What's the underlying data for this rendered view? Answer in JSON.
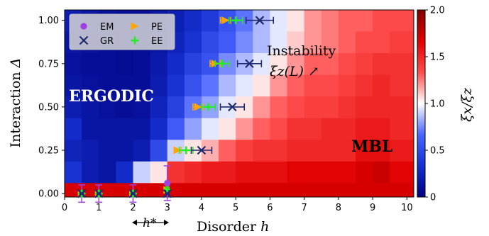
{
  "chart_data": {
    "type": "heatmap",
    "title": "",
    "xlabel": "Disorder",
    "xlabel_symbol": "h",
    "ylabel": "Interaction",
    "ylabel_symbol": "Δ",
    "xlim": [
      0,
      10.2
    ],
    "ylim": [
      -0.02,
      1.06
    ],
    "xticks": [
      "0",
      "1",
      "2",
      "3",
      "4",
      "5",
      "6",
      "7",
      "8",
      "9",
      "10"
    ],
    "yticks": [
      "0.00",
      "0.25",
      "0.50",
      "0.75",
      "1.00"
    ],
    "colorbar": {
      "label": "ξx/ξz",
      "range": [
        0,
        2.0
      ],
      "ticks": [
        "0",
        "0.5",
        "1.0",
        "1.5",
        "2.0"
      ],
      "colors": [
        "#00007f",
        "#1530d0",
        "#4a64ff",
        "#ffffff",
        "#ff4d4d",
        "#e00000",
        "#7f0000"
      ]
    },
    "heatmap": {
      "h_centers": [
        0.25,
        0.75,
        1.25,
        1.75,
        2.25,
        2.75,
        3.25,
        3.75,
        4.25,
        4.75,
        5.25,
        5.75,
        6.25,
        6.75,
        7.25,
        7.75,
        8.25,
        8.75,
        9.25,
        9.75
      ],
      "delta_centers": [
        0.0,
        0.125,
        0.25,
        0.375,
        0.5,
        0.625,
        0.75,
        0.875,
        1.0
      ],
      "values": [
        [
          1.7,
          1.7,
          1.7,
          1.7,
          1.7,
          1.7,
          1.7,
          1.7,
          1.7,
          1.7,
          1.7,
          1.7,
          1.7,
          1.7,
          1.7,
          1.7,
          1.7,
          1.7,
          1.7,
          1.7
        ],
        [
          0.35,
          0.2,
          0.15,
          0.3,
          0.9,
          1.05,
          1.45,
          1.5,
          1.55,
          1.55,
          1.6,
          1.6,
          1.6,
          1.65,
          1.65,
          1.65,
          1.65,
          1.7,
          1.75,
          1.65
        ],
        [
          0.25,
          0.2,
          0.15,
          0.15,
          0.2,
          0.5,
          0.9,
          1.05,
          1.15,
          1.3,
          1.4,
          1.45,
          1.45,
          1.5,
          1.5,
          1.5,
          1.5,
          1.6,
          1.6,
          1.55
        ],
        [
          0.3,
          0.15,
          0.15,
          0.15,
          0.15,
          0.3,
          0.6,
          0.8,
          0.95,
          1.05,
          1.2,
          1.3,
          1.35,
          1.45,
          1.45,
          1.5,
          1.5,
          1.55,
          1.55,
          1.5
        ],
        [
          0.2,
          0.15,
          0.12,
          0.1,
          0.12,
          0.25,
          0.45,
          0.7,
          0.8,
          0.95,
          1.05,
          1.2,
          1.3,
          1.35,
          1.4,
          1.4,
          1.45,
          1.5,
          1.5,
          1.5
        ],
        [
          0.15,
          0.12,
          0.1,
          0.1,
          0.1,
          0.2,
          0.35,
          0.55,
          0.7,
          0.85,
          0.95,
          1.05,
          1.2,
          1.3,
          1.35,
          1.35,
          1.4,
          1.45,
          1.5,
          1.45
        ],
        [
          0.12,
          0.1,
          0.1,
          0.08,
          0.1,
          0.18,
          0.3,
          0.45,
          0.55,
          0.75,
          0.85,
          0.95,
          1.05,
          1.2,
          1.3,
          1.3,
          1.35,
          1.4,
          1.45,
          1.45
        ],
        [
          0.15,
          0.12,
          0.1,
          0.08,
          0.1,
          0.15,
          0.25,
          0.35,
          0.5,
          0.6,
          0.75,
          0.85,
          0.95,
          1.1,
          1.2,
          1.25,
          1.3,
          1.35,
          1.35,
          1.4
        ],
        [
          0.2,
          0.15,
          0.12,
          0.1,
          0.1,
          0.15,
          0.22,
          0.3,
          0.4,
          0.55,
          0.7,
          0.85,
          0.95,
          1.05,
          1.2,
          1.25,
          1.3,
          1.3,
          1.35,
          1.35
        ]
      ]
    },
    "legend": {
      "placement": "top-left",
      "entries": [
        {
          "label": "EM",
          "marker": "circle",
          "color": "#a040e0"
        },
        {
          "label": "PE",
          "marker": "triangle-right",
          "color": "#ffa500"
        },
        {
          "label": "GR",
          "marker": "x",
          "color": "#1f2a6e"
        },
        {
          "label": "EE",
          "marker": "plus",
          "color": "#22ee22"
        }
      ]
    },
    "series": [
      {
        "name": "EM",
        "points": [
          {
            "delta": 0.0,
            "h": 0.5,
            "err": 0.05
          },
          {
            "delta": 0.0,
            "h": 1.0,
            "err": 0.05
          },
          {
            "delta": 0.0,
            "h": 2.0,
            "err": 0.05
          },
          {
            "delta": 0.06,
            "h": 3.0,
            "err": 0.1
          }
        ]
      },
      {
        "name": "PE",
        "points": [
          {
            "delta": 0.0,
            "h": 0.5,
            "err": 0.05
          },
          {
            "delta": 0.0,
            "h": 1.0,
            "err": 0.05
          },
          {
            "delta": 0.0,
            "h": 2.0,
            "err": 0.05
          },
          {
            "delta": 0.02,
            "h": 3.0,
            "err": 0.05
          },
          {
            "delta": 0.25,
            "h": 3.3,
            "err": 0.1
          },
          {
            "delta": 0.5,
            "h": 3.9,
            "err": 0.15
          },
          {
            "delta": 0.75,
            "h": 4.4,
            "err": 0.15
          },
          {
            "delta": 1.0,
            "h": 4.7,
            "err": 0.15
          }
        ]
      },
      {
        "name": "EE",
        "points": [
          {
            "delta": 0.0,
            "h": 0.5,
            "err": 0.05
          },
          {
            "delta": 0.0,
            "h": 1.0,
            "err": 0.05
          },
          {
            "delta": 0.0,
            "h": 2.0,
            "err": 0.05
          },
          {
            "delta": 0.02,
            "h": 3.0,
            "err": 0.05
          },
          {
            "delta": 0.25,
            "h": 3.55,
            "err": 0.2
          },
          {
            "delta": 0.5,
            "h": 4.2,
            "err": 0.2
          },
          {
            "delta": 0.75,
            "h": 4.6,
            "err": 0.2
          },
          {
            "delta": 1.0,
            "h": 5.0,
            "err": 0.2
          }
        ]
      },
      {
        "name": "GR",
        "points": [
          {
            "delta": 0.0,
            "h": 0.5,
            "err": 0.05
          },
          {
            "delta": 0.0,
            "h": 1.0,
            "err": 0.05
          },
          {
            "delta": 0.0,
            "h": 2.0,
            "err": 0.05
          },
          {
            "delta": 0.0,
            "h": 3.0,
            "err": 0.05
          },
          {
            "delta": 0.25,
            "h": 4.0,
            "err": 0.3
          },
          {
            "delta": 0.5,
            "h": 4.9,
            "err": 0.35
          },
          {
            "delta": 0.75,
            "h": 5.4,
            "err": 0.35
          },
          {
            "delta": 1.0,
            "h": 5.7,
            "err": 0.4
          }
        ]
      }
    ],
    "annotations": {
      "ergodic": "ERGODIC",
      "mbl": "MBL",
      "instability": "Instability",
      "instability_formula": "ξz(L) ↗",
      "hstar": "h*"
    }
  }
}
